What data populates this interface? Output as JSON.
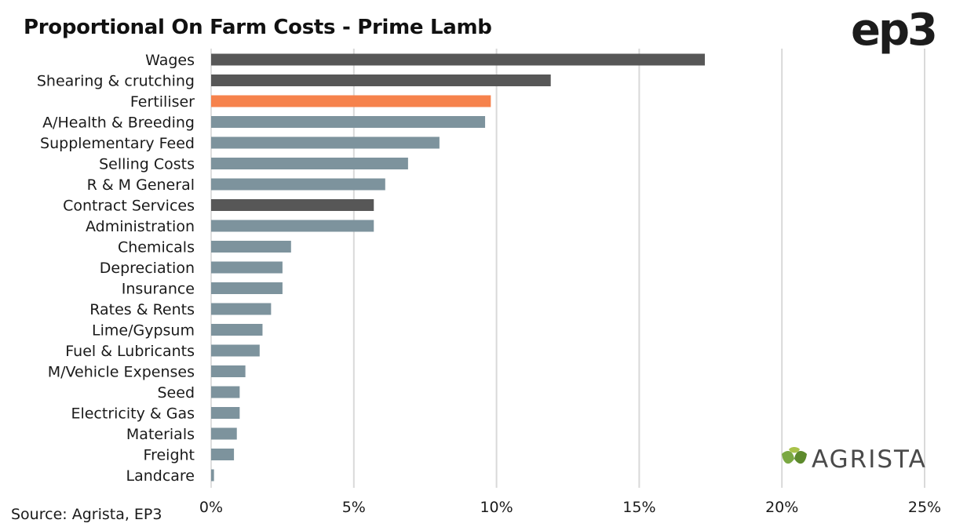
{
  "title": "Proportional On Farm Costs - Prime Lamb",
  "brand": "ep3",
  "source": "Source: Agrista, EP3",
  "logo": {
    "text": "AGRISTA",
    "icon": "agrista-leaf-icon"
  },
  "colors": {
    "default_bar": "#7d939d",
    "dark_bar": "#575757",
    "highlight_bar": "#f6824c",
    "grid": "#d9d9d9"
  },
  "chart_data": {
    "type": "bar",
    "orientation": "horizontal",
    "title": "Proportional On Farm Costs - Prime Lamb",
    "xlabel": "",
    "ylabel": "",
    "xlim": [
      0,
      25
    ],
    "xticks": [
      0,
      5,
      10,
      15,
      20,
      25
    ],
    "xtick_labels": [
      "0%",
      "5%",
      "10%",
      "15%",
      "20%",
      "25%"
    ],
    "grid": "vertical",
    "categories": [
      "Wages",
      "Shearing & crutching",
      "Fertiliser",
      "A/Health & Breeding",
      "Supplementary Feed",
      "Selling Costs",
      "R & M General",
      "Contract Services",
      "Administration",
      "Chemicals",
      "Depreciation",
      "Insurance",
      "Rates & Rents",
      "Lime/Gypsum",
      "Fuel & Lubricants",
      "M/Vehicle Expenses",
      "Seed",
      "Electricity & Gas",
      "Materials",
      "Freight",
      "Landcare"
    ],
    "values": [
      17.3,
      11.9,
      9.8,
      9.6,
      8.0,
      6.9,
      6.1,
      5.7,
      5.7,
      2.8,
      2.5,
      2.5,
      2.1,
      1.8,
      1.7,
      1.2,
      1.0,
      1.0,
      0.9,
      0.8,
      0.1
    ],
    "bar_colors": [
      "dark",
      "dark",
      "highlight",
      "default",
      "default",
      "default",
      "default",
      "dark",
      "default",
      "default",
      "default",
      "default",
      "default",
      "default",
      "default",
      "default",
      "default",
      "default",
      "default",
      "default",
      "default"
    ]
  }
}
